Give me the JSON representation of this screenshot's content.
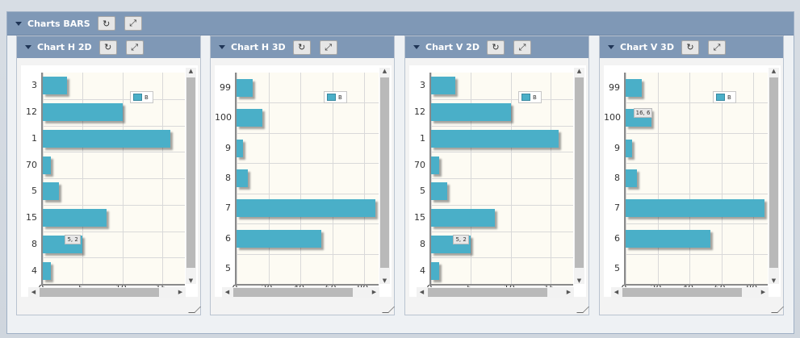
{
  "outer": {
    "title": "Charts BARS"
  },
  "legend_label": "B",
  "panels": [
    {
      "title": "Chart H 2D",
      "categories": [
        "3",
        "12",
        "1",
        "70",
        "5",
        "15",
        "8",
        "4"
      ],
      "values": [
        3,
        10,
        16,
        1,
        2,
        8,
        5,
        1
      ],
      "xticks": [
        "0",
        "5",
        "10",
        "15"
      ],
      "xmax": 18,
      "tooltip": "5, 2",
      "tooltip_index": 6
    },
    {
      "title": "Chart H 3D",
      "categories": [
        "99",
        "100",
        "9",
        "8",
        "7",
        "6",
        "5"
      ],
      "values": [
        10,
        16,
        4,
        7,
        87,
        53,
        0
      ],
      "xticks": [
        "0",
        "20",
        "40",
        "60",
        "80"
      ],
      "xmax": 90
    },
    {
      "title": "Chart V 2D",
      "categories": [
        "3",
        "12",
        "1",
        "70",
        "5",
        "15",
        "8",
        "4"
      ],
      "values": [
        3,
        10,
        16,
        1,
        2,
        8,
        5,
        1
      ],
      "xticks": [
        "0",
        "5",
        "10",
        "15"
      ],
      "xmax": 18,
      "tooltip": "5, 2",
      "tooltip_index": 6
    },
    {
      "title": "Chart V 3D",
      "categories": [
        "99",
        "100",
        "9",
        "8",
        "7",
        "6",
        "5"
      ],
      "values": [
        10,
        16,
        4,
        7,
        87,
        53,
        0
      ],
      "xticks": [
        "0",
        "20",
        "40",
        "60",
        "80"
      ],
      "xmax": 90,
      "tooltip": "16, 6",
      "tooltip_index": 1
    }
  ],
  "icons": {
    "refresh": "refresh-icon",
    "expand": "expand-icon",
    "collapse": "collapse-caret-icon"
  }
}
